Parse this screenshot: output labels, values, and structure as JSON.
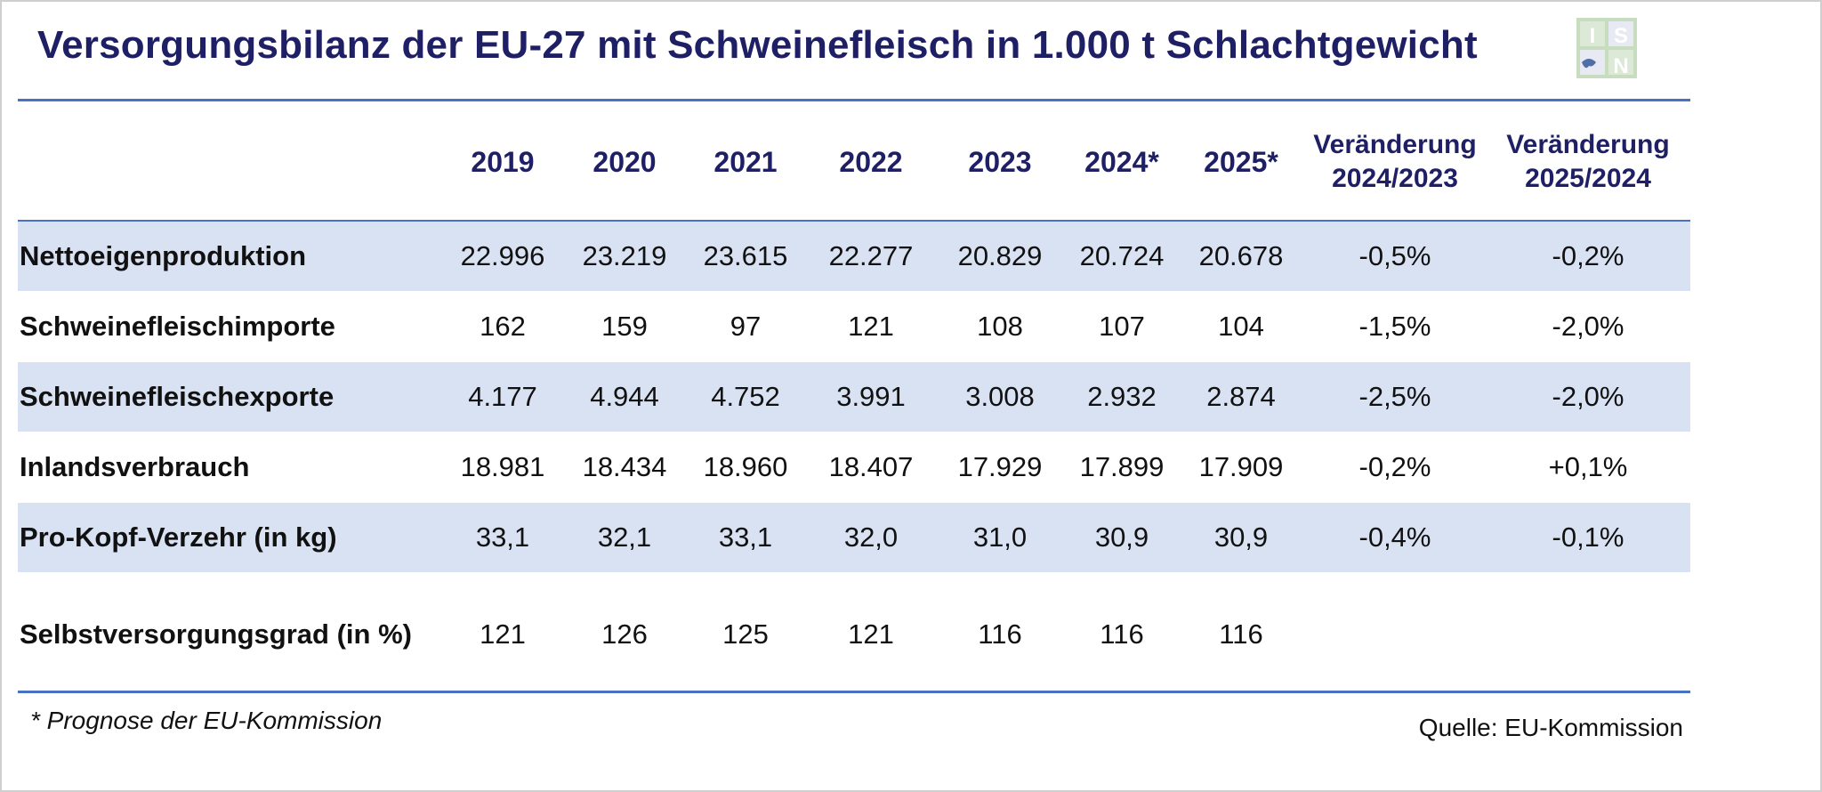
{
  "title": "Versorgungsbilanz der EU-27 mit Schweinefleisch in 1.000 t Schlachtgewicht",
  "logo": {
    "name": "ISN",
    "colors": [
      "#c8dcc0",
      "#ffffff",
      "#4f6fa8"
    ]
  },
  "chart_data": {
    "type": "table",
    "columns": [
      "2019",
      "2020",
      "2021",
      "2022",
      "2023",
      "2024*",
      "2025*"
    ],
    "change_columns": [
      "Veränderung 2024/2023",
      "Veränderung 2025/2024"
    ],
    "rows": [
      {
        "label": "Nettoeigenproduktion",
        "values": [
          "22.996",
          "23.219",
          "23.615",
          "22.277",
          "20.829",
          "20.724",
          "20.678"
        ],
        "changes": [
          "-0,5%",
          "-0,2%"
        ]
      },
      {
        "label": "Schweinefleischimporte",
        "values": [
          "162",
          "159",
          "97",
          "121",
          "108",
          "107",
          "104"
        ],
        "changes": [
          "-1,5%",
          "-2,0%"
        ]
      },
      {
        "label": "Schweinefleischexporte",
        "values": [
          "4.177",
          "4.944",
          "4.752",
          "3.991",
          "3.008",
          "2.932",
          "2.874"
        ],
        "changes": [
          "-2,5%",
          "-2,0%"
        ]
      },
      {
        "label": "Inlandsverbrauch",
        "values": [
          "18.981",
          "18.434",
          "18.960",
          "18.407",
          "17.929",
          "17.899",
          "17.909"
        ],
        "changes": [
          "-0,2%",
          "+0,1%"
        ]
      },
      {
        "label": "Pro-Kopf-Verzehr (in kg)",
        "values": [
          "33,1",
          "32,1",
          "33,1",
          "32,0",
          "31,0",
          "30,9",
          "30,9"
        ],
        "changes": [
          "-0,4%",
          "-0,1%"
        ]
      },
      {
        "label": "Selbstversorgungsgrad (in %)",
        "values": [
          "121",
          "126",
          "125",
          "121",
          "116",
          "116",
          "116"
        ],
        "changes": [
          "",
          ""
        ]
      }
    ],
    "row_shading": [
      true,
      false,
      true,
      false,
      true,
      false
    ]
  },
  "footnote": "* Prognose der EU-Kommission",
  "source": "Quelle: EU-Kommission"
}
